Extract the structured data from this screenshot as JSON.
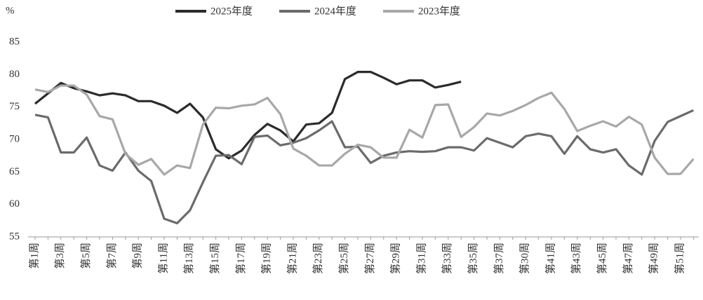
{
  "chart_data": {
    "type": "line",
    "ylabel": "%",
    "categories": [
      "第1周",
      null,
      "第3周",
      null,
      "第5周",
      null,
      "第7周",
      null,
      "第9周",
      null,
      "第11周",
      null,
      "第13周",
      null,
      "第15周",
      null,
      "第17周",
      null,
      "第19周",
      null,
      "第21周",
      null,
      "第23周",
      null,
      "第25周",
      null,
      "第27周",
      null,
      "第29周",
      null,
      "第31周",
      null,
      "第33周",
      null,
      "第35周",
      null,
      "第37周",
      null,
      "第30周",
      null,
      "第41周",
      null,
      "第43周",
      null,
      "第45周",
      null,
      "第47周",
      null,
      "第49周",
      null,
      "第51周",
      null
    ],
    "series": [
      {
        "name": "2025年度",
        "color": "#2b2b2b",
        "values": [
          75.5,
          77.1,
          78.7,
          77.9,
          77.4,
          76.8,
          77.1,
          76.8,
          75.9,
          75.9,
          75.2,
          74.1,
          75.5,
          73.4,
          68.5,
          67.1,
          68.3,
          70.7,
          72.4,
          71.4,
          69.7,
          72.3,
          72.5,
          74.1,
          79.3,
          80.4,
          80.4,
          79.5,
          78.5,
          79.1,
          79.1,
          78.0,
          78.4,
          78.9,
          null,
          null,
          null,
          null,
          null,
          null,
          null,
          null,
          null,
          null,
          null,
          null,
          null,
          null,
          null,
          null,
          null,
          null
        ]
      },
      {
        "name": "2024年度",
        "color": "#6b6b6b",
        "values": [
          73.8,
          73.4,
          68,
          68,
          70.3,
          66,
          65.2,
          68,
          65.2,
          63.6,
          57.8,
          57.1,
          59.1,
          63.4,
          67.5,
          67.6,
          66.2,
          70.4,
          70.6,
          69.1,
          69.5,
          70.2,
          71.4,
          72.8,
          68.8,
          68.9,
          66.4,
          67.5,
          68,
          68.2,
          68.1,
          68.2,
          68.8,
          68.8,
          68.3,
          70.2,
          69.5,
          68.8,
          70.5,
          70.9,
          70.5,
          67.8,
          70.5,
          68.5,
          68,
          68.5,
          66,
          64.6,
          69.8,
          72.7,
          73.6,
          74.5
        ]
      },
      {
        "name": "2023年度",
        "color": "#a8a8a8",
        "values": [
          77.7,
          77.3,
          78.3,
          78.3,
          76.9,
          73.6,
          73.1,
          67.8,
          66.1,
          67,
          64.6,
          66,
          65.6,
          72.3,
          74.9,
          74.8,
          75.2,
          75.4,
          76.4,
          73.9,
          68.6,
          67.5,
          66,
          66,
          67.8,
          69.2,
          68.8,
          67.2,
          67.2,
          71.5,
          70.3,
          75.3,
          75.4,
          70.4,
          71.9,
          74,
          73.7,
          74.4,
          75.3,
          76.4,
          77.2,
          74.7,
          71.3,
          72.1,
          72.8,
          72,
          73.5,
          72.3,
          67.2,
          64.7,
          64.7,
          67
        ]
      }
    ],
    "ylim": [
      55,
      85
    ],
    "yticks": [
      55,
      60,
      65,
      70,
      75,
      80,
      85
    ],
    "grid": false
  }
}
